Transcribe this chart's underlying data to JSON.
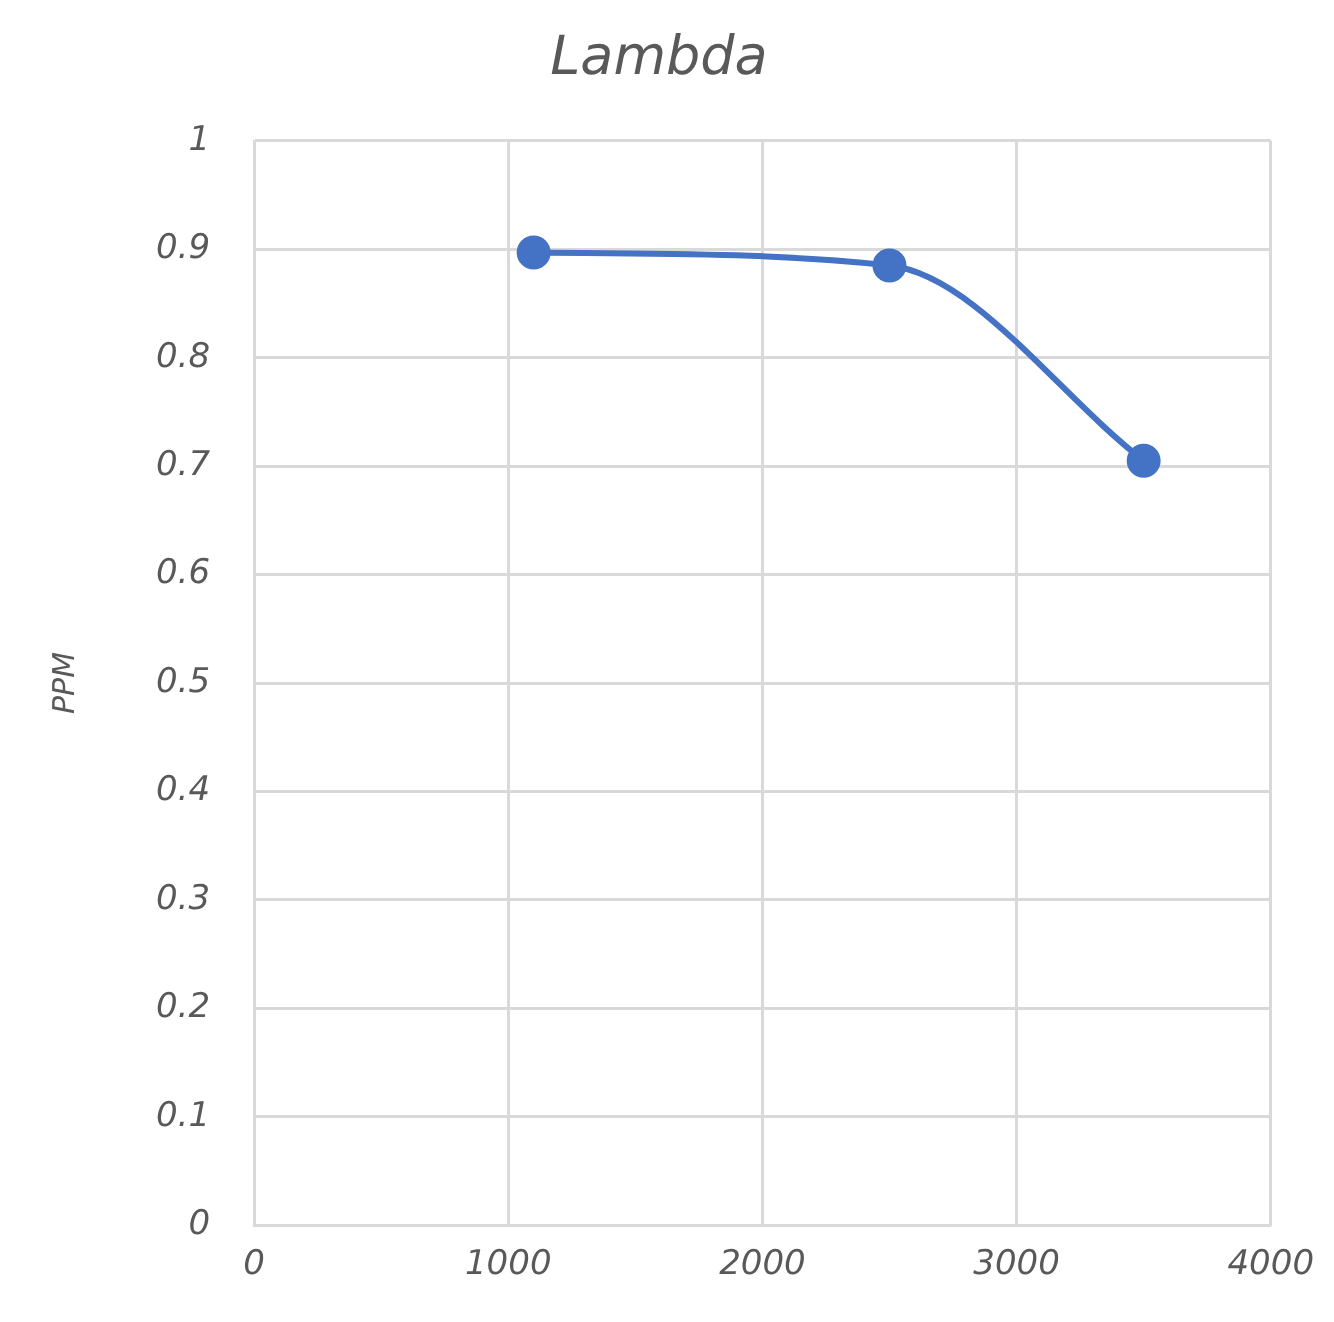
{
  "chart_data": {
    "type": "line",
    "title": "Lambda",
    "ylabel": "PPM",
    "x": [
      1100,
      2500,
      3500
    ],
    "series": [
      {
        "color": "#4472c4",
        "values": [
          0.897,
          0.885,
          0.705
        ]
      }
    ],
    "xlim": [
      0,
      4000
    ],
    "xticks": [
      0,
      1000,
      2000,
      3000,
      4000
    ],
    "ylim": [
      0,
      1
    ],
    "yticks": [
      0,
      0.1,
      0.2,
      0.3,
      0.4,
      0.5,
      0.6,
      0.7,
      0.8,
      0.9,
      1
    ],
    "grid": true,
    "marker": "circle",
    "line_style": "solid",
    "legend": false
  }
}
